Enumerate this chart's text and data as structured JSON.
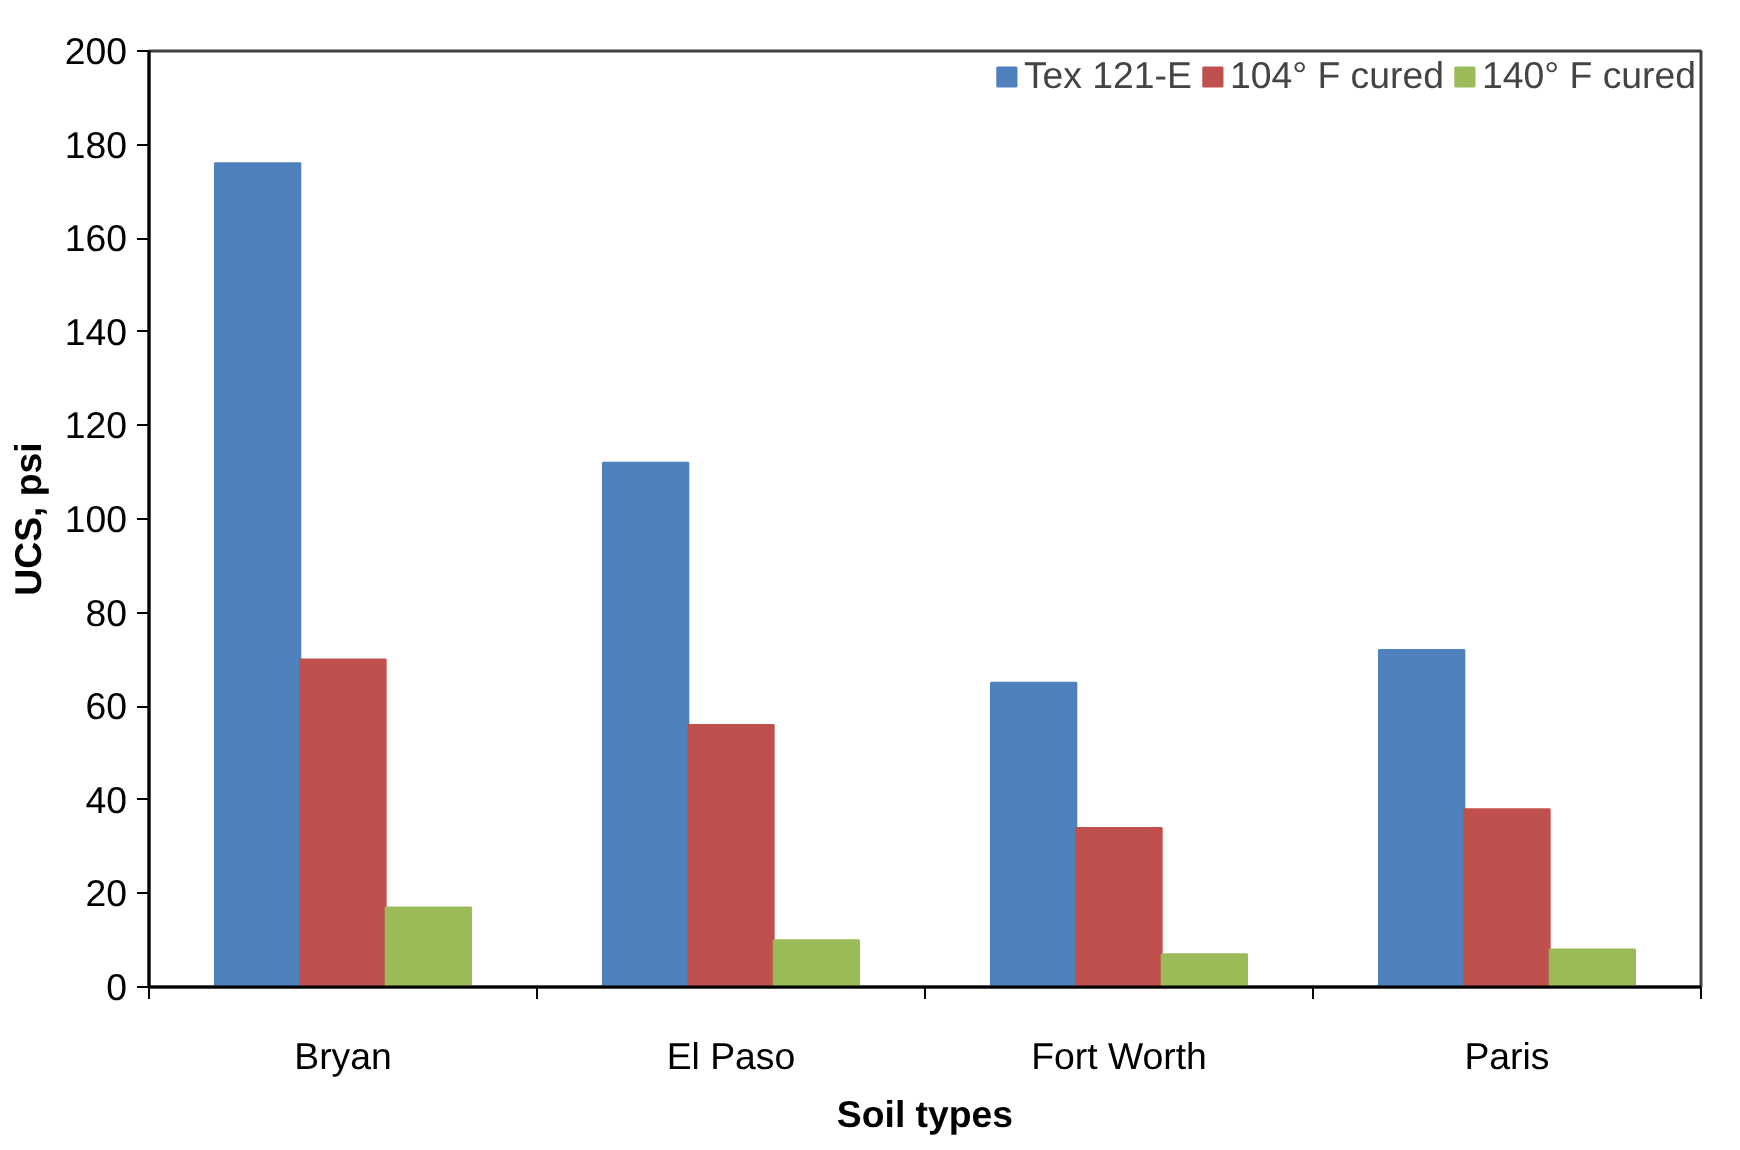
{
  "chart_data": {
    "type": "bar",
    "xlabel": "Soil types",
    "ylabel": "UCS, psi",
    "categories": [
      "Bryan",
      "El Paso",
      "Fort Worth",
      "Paris"
    ],
    "series": [
      {
        "name": "Tex 121-E",
        "color": "#4f81bd",
        "values": [
          176,
          112,
          65,
          72
        ]
      },
      {
        "name": "104° F cured",
        "color": "#c0504d",
        "values": [
          70,
          56,
          34,
          38
        ]
      },
      {
        "name": "140° F cured",
        "color": "#9bbb59",
        "values": [
          17,
          10,
          7,
          8
        ]
      }
    ],
    "ylim": [
      0,
      200
    ],
    "yticks": [
      0,
      20,
      40,
      60,
      80,
      100,
      120,
      140,
      160,
      180,
      200
    ],
    "grid": false,
    "legend": "top right"
  }
}
